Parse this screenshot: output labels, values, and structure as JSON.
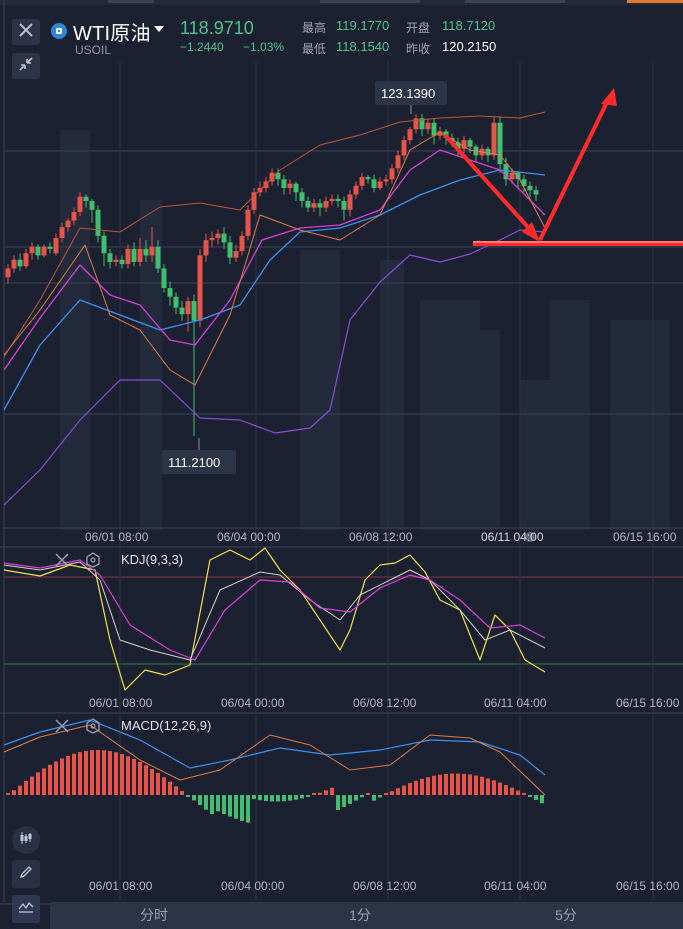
{
  "header": {
    "symbol_name": "WTI原油",
    "symbol_code": "USOIL",
    "last_price": "118.9710",
    "change": "−1.2440",
    "change_pct": "−1.03%",
    "high_label": "最高",
    "high_value": "119.1770",
    "open_label": "开盘",
    "open_value": "118.7120",
    "low_label": "最低",
    "low_value": "118.1540",
    "prev_close_label": "昨收",
    "prev_close_value": "120.2150",
    "close_icon": "close-icon",
    "fullscreen_icon": "collapse-arrows-icon"
  },
  "main_chart": {
    "max_marker": "123.1390",
    "min_marker": "111.2100",
    "x_ticks": [
      "06/01 08:00",
      "06/04 00:00",
      "06/08 12:00",
      "06/11 04:00",
      "06/15 16:00"
    ]
  },
  "kdj": {
    "label": "KDJ(9,3,3)",
    "x_ticks": [
      "06/01 08:00",
      "06/04 00:00",
      "06/08 12:00",
      "06/11 04:00",
      "06/15 16:00"
    ]
  },
  "macd": {
    "label": "MACD(12,26,9)",
    "x_ticks": [
      "06/01 08:00",
      "06/04 00:00",
      "06/08 12:00",
      "06/11 04:00",
      "06/15 16:00"
    ]
  },
  "tabs": [
    "分时",
    "1分",
    "5分"
  ],
  "colors": {
    "bg": "#1b2131",
    "up": "#e8544a",
    "down": "#3fbf6f",
    "ma_blue": "#3d8ff0",
    "ma_pink": "#d93fd6",
    "ma_orange": "#e07a4a",
    "boll_purple": "#8a4dd8",
    "k_yellow": "#f2e24a",
    "annotation_red": "#ff2b2b"
  },
  "side_icons": [
    "candles-icon",
    "pencil-icon",
    "indicator-icon"
  ]
}
